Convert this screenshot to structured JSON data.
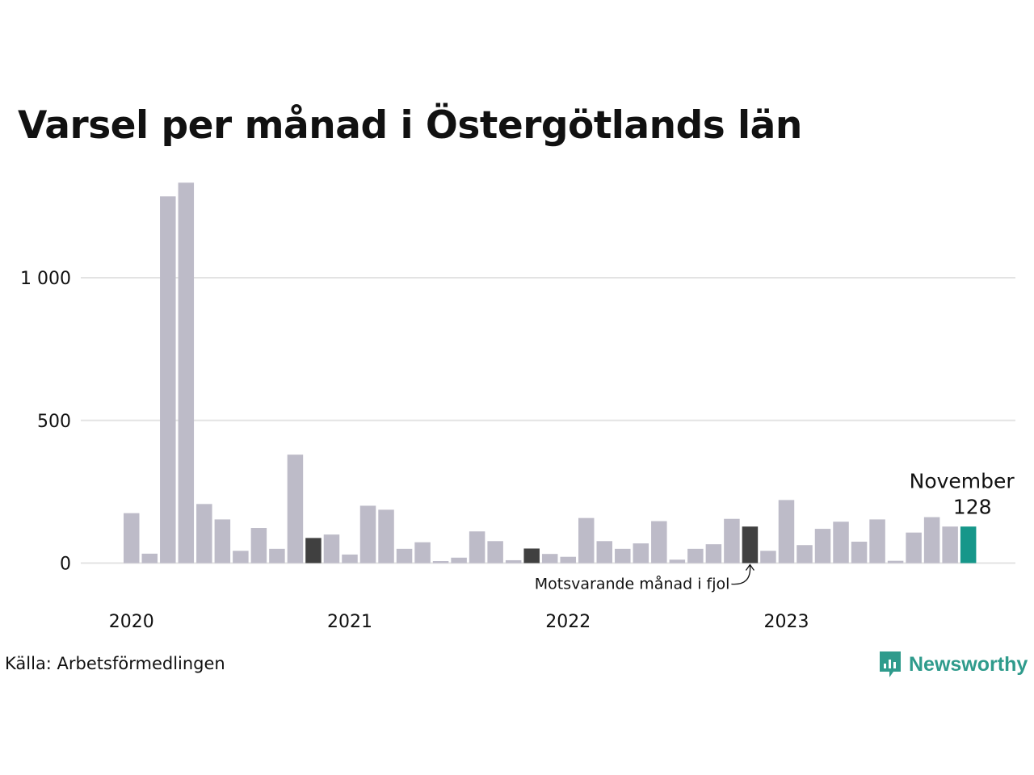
{
  "title": "Varsel per månad i Östergötlands län",
  "source": "Källa: Arbetsförmedlingen",
  "brand": {
    "name": "Newsworthy",
    "icon": "newsworthy-logo-icon",
    "color": "#2f9b8c"
  },
  "colors": {
    "default_bar": "#bdbbc8",
    "comparison_bar": "#404040",
    "current_bar": "#16978a",
    "gridline": "#e3e3e3"
  },
  "annotations": {
    "current_month": "November",
    "current_value": "128",
    "comparison_note": "Motsvarande månad i fjol"
  },
  "chart_data": {
    "type": "bar",
    "title": "Varsel per månad i Östergötlands län",
    "xlabel": "",
    "ylabel": "",
    "ylim": [
      0,
      1350
    ],
    "yticks": [
      0,
      500,
      1000
    ],
    "ytick_labels": [
      "0",
      "500",
      "1 000"
    ],
    "grid": true,
    "xtick_labels": [
      {
        "label": "2020",
        "index": 0
      },
      {
        "label": "2021",
        "index": 12
      },
      {
        "label": "2022",
        "index": 24
      },
      {
        "label": "2023",
        "index": 36
      }
    ],
    "categories": [
      "2020-01",
      "2020-02",
      "2020-03",
      "2020-04",
      "2020-05",
      "2020-06",
      "2020-07",
      "2020-08",
      "2020-09",
      "2020-10",
      "2020-11",
      "2020-12",
      "2021-01",
      "2021-02",
      "2021-03",
      "2021-04",
      "2021-05",
      "2021-06",
      "2021-07",
      "2021-08",
      "2021-09",
      "2021-10",
      "2021-11",
      "2021-12",
      "2022-01",
      "2022-02",
      "2022-03",
      "2022-04",
      "2022-05",
      "2022-06",
      "2022-07",
      "2022-08",
      "2022-09",
      "2022-10",
      "2022-11",
      "2022-12",
      "2023-01",
      "2023-02",
      "2023-03",
      "2023-04",
      "2023-05",
      "2023-06",
      "2023-07",
      "2023-08",
      "2023-09",
      "2023-10",
      "2023-11"
    ],
    "values": [
      175,
      33,
      1285,
      1333,
      207,
      153,
      43,
      123,
      50,
      380,
      88,
      100,
      30,
      201,
      187,
      50,
      73,
      7,
      19,
      111,
      77,
      10,
      51,
      32,
      22,
      158,
      77,
      50,
      69,
      147,
      12,
      50,
      66,
      155,
      128,
      43,
      221,
      63,
      120,
      145,
      75,
      153,
      8,
      107,
      161,
      128,
      128
    ],
    "highlights": {
      "comparison": [
        10,
        22,
        34
      ],
      "current": 46
    }
  }
}
